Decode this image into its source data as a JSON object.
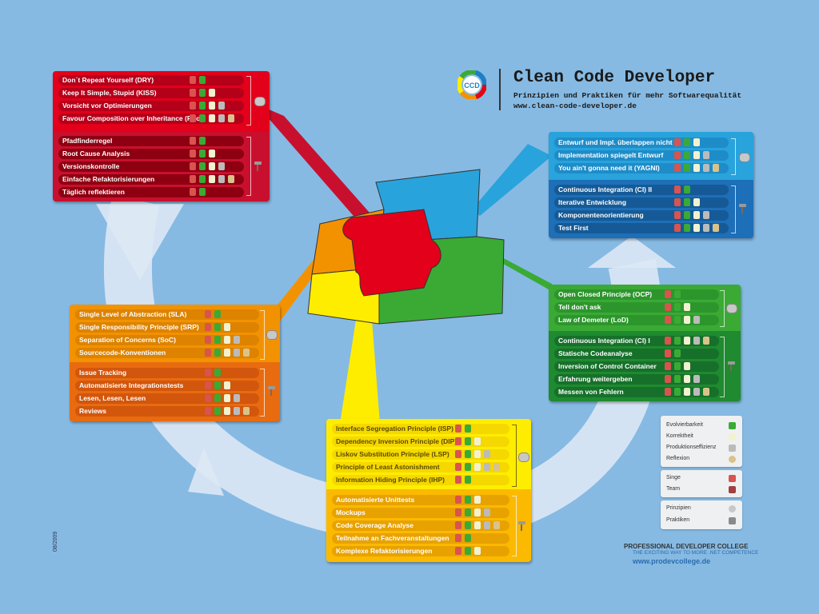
{
  "header": {
    "title": "Clean Code Developer",
    "subtitle": "Prinzipien und Praktiken für mehr Softwarequalität",
    "url": "www.clean-code-developer.de"
  },
  "colors": {
    "background": "#86bae3",
    "red": "#c8102e",
    "orange": "#f39200",
    "yellow": "#ffed00",
    "green": "#3aaa35",
    "blue": "#1d7fc4"
  },
  "panels": {
    "red": {
      "principles": [
        "Don´t Repeat Yourself (DRY)",
        "Keep It Simple, Stupid (KISS)",
        "Vorsicht vor Optimierungen",
        "Favour Composition over Inheritance (FCoI)"
      ],
      "practices": [
        "Pfadfinderregel",
        "Root Cause Analysis",
        "Versionskontrolle",
        "Einfache Refaktorisierungen",
        "Täglich reflektieren"
      ]
    },
    "orange": {
      "principles": [
        "Single Level of Abstraction (SLA)",
        "Single Responsibility Principle (SRP)",
        "Separation of Concerns (SoC)",
        "Sourcecode-Konventionen"
      ],
      "practices": [
        "Issue Tracking",
        "Automatisierte Integrationstests",
        "Lesen, Lesen, Lesen",
        "Reviews"
      ]
    },
    "yellow": {
      "principles": [
        "Interface Segregation Principle (ISP)",
        "Dependency Inversion Principle (DIP)",
        "Liskov Substitution Principle (LSP)",
        "Principle of Least Astonishment",
        "Information Hiding Principle (IHP)"
      ],
      "practices": [
        "Automatisierte Unittests",
        "Mockups",
        "Code Coverage Analyse",
        "Teilnahme an Fachveranstaltungen",
        "Komplexe Refaktorisierungen"
      ]
    },
    "green": {
      "principles": [
        "Open Closed Principle (OCP)",
        "Tell don't ask",
        "Law of Demeter (LoD)"
      ],
      "practices": [
        "Continuous Integration (CI) I",
        "Statische Codeanalyse",
        "Inversion of Control Container",
        "Erfahrung weitergeben",
        "Messen von Fehlern"
      ]
    },
    "blue": {
      "principles": [
        "Entwurf und Impl. überlappen nicht",
        "Implementation spiegelt Entwurf",
        "You ain't gonna need it (YAGNI)"
      ],
      "practices": [
        "Continuous Integration (CI) II",
        "Iterative Entwicklung",
        "Komponentenorientierung",
        "Test First"
      ]
    }
  },
  "legend": {
    "values": [
      "Evolvierbarkeit",
      "Korrektheit",
      "Produktionseffizienz",
      "Reflexion"
    ],
    "actors": [
      "Singe",
      "Team"
    ],
    "kinds": [
      "Prinzipien",
      "Praktiken"
    ]
  },
  "footer": {
    "college": "PROFESSIONAL DEVELOPER COLLEGE",
    "tagline": "THE EXCITING WAY TO MORE .NET COMPETENCE",
    "college_url": "www.prodevcollege.de",
    "date": "08/2009"
  }
}
